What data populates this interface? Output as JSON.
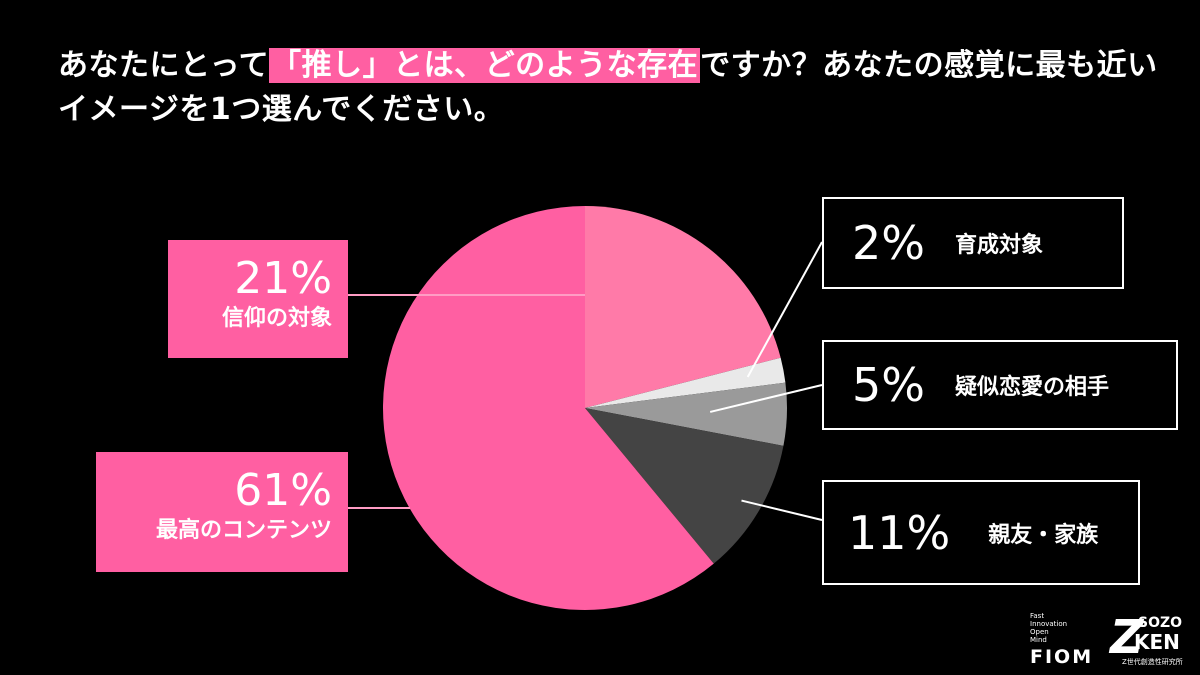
{
  "title": {
    "pre": "あなたにとって",
    "highlight": "「推し」とは、どのような存在",
    "post": "ですか？あなたの感覚に最も近い",
    "line2": "イメージを1つ選んでください。"
  },
  "colors": {
    "background": "#000000",
    "accent": "#ff5fa2"
  },
  "chart_data": {
    "type": "pie",
    "start": "12 o'clock, clockwise",
    "slices": [
      {
        "label": "信仰の対象",
        "pct_label": "21%",
        "value": 21,
        "color": "#ff7aa8"
      },
      {
        "label": "育成対象",
        "pct_label": "2%",
        "value": 2,
        "color": "#e9e9e9"
      },
      {
        "label": "疑似恋愛の相手",
        "pct_label": "5%",
        "value": 5,
        "color": "#9a9a9a"
      },
      {
        "label": "親友・家族",
        "pct_label": "11%",
        "value": 11,
        "color": "#444444"
      },
      {
        "label": "最高のコンテンツ",
        "pct_label": "61%",
        "value": 61,
        "color": "#ff5fa2"
      }
    ]
  },
  "logos": {
    "fiom_small": [
      "Fast",
      "Innovation",
      "Open",
      "Mind"
    ],
    "fiom": "FIOM",
    "zken_z": "Z",
    "zken_sozo": "SOZO",
    "zken_ken": "KEN",
    "zken_sub": "Z世代創造性研究所"
  }
}
